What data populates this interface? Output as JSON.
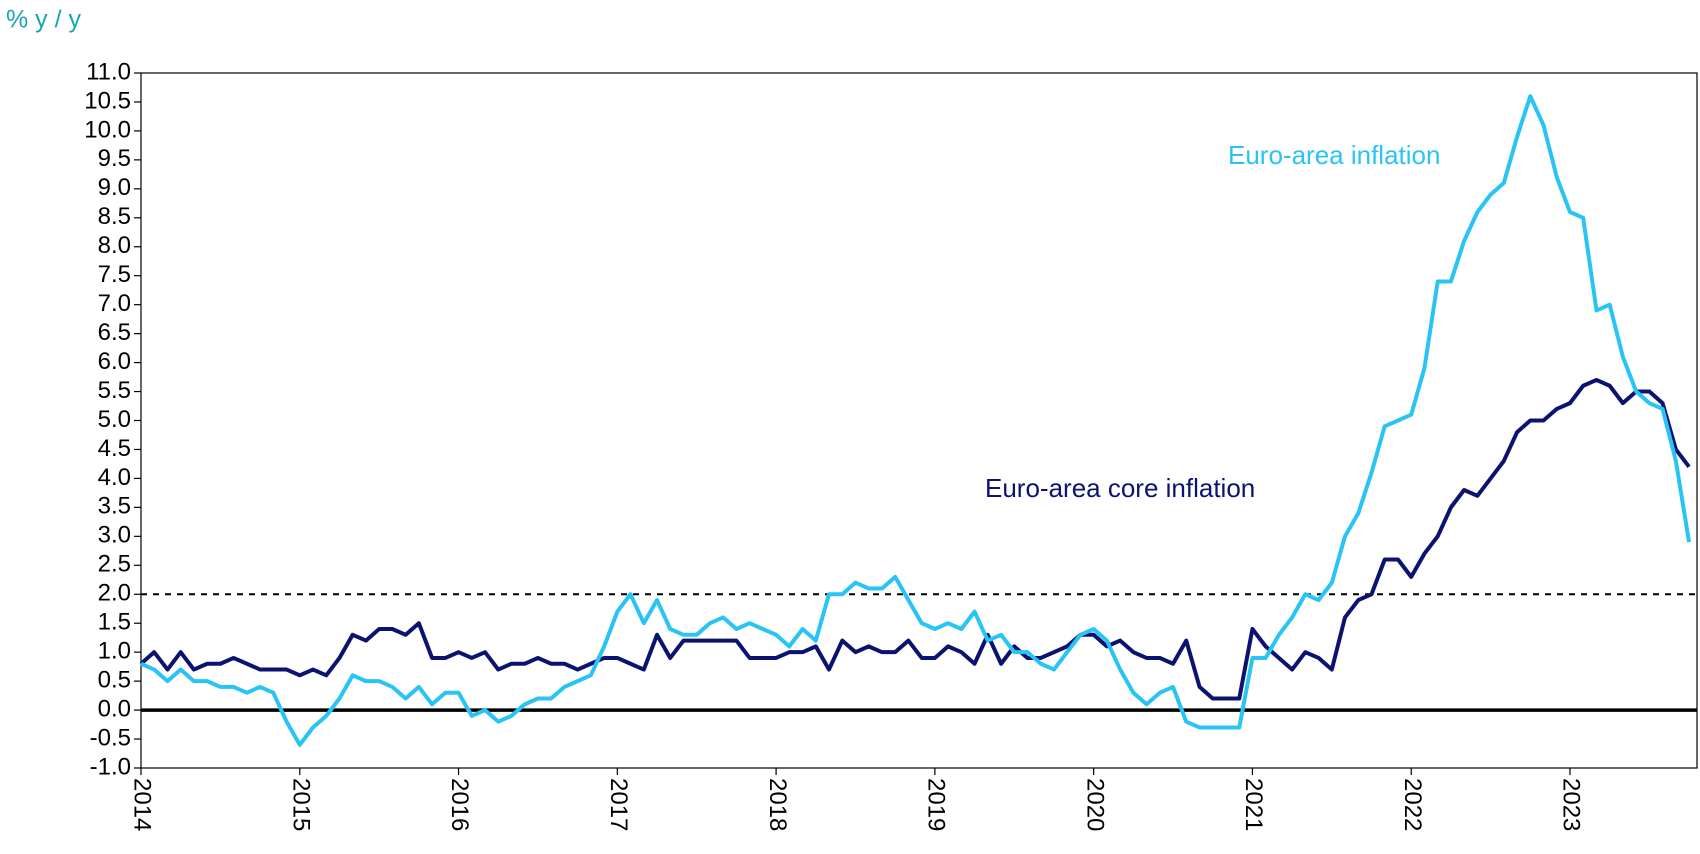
{
  "chart_data": {
    "type": "line",
    "y_label": "% y / y",
    "annotations": [
      "Euro-area inflation",
      "Euro-area core inflation"
    ],
    "x": [
      2014,
      2014.083,
      2014.167,
      2014.25,
      2014.333,
      2014.417,
      2014.5,
      2014.583,
      2014.667,
      2014.75,
      2014.833,
      2014.917,
      2015,
      2015.083,
      2015.167,
      2015.25,
      2015.333,
      2015.417,
      2015.5,
      2015.583,
      2015.667,
      2015.75,
      2015.833,
      2015.917,
      2016,
      2016.083,
      2016.167,
      2016.25,
      2016.333,
      2016.417,
      2016.5,
      2016.583,
      2016.667,
      2016.75,
      2016.833,
      2016.917,
      2017,
      2017.083,
      2017.167,
      2017.25,
      2017.333,
      2017.417,
      2017.5,
      2017.583,
      2017.667,
      2017.75,
      2017.833,
      2017.917,
      2018,
      2018.083,
      2018.167,
      2018.25,
      2018.333,
      2018.417,
      2018.5,
      2018.583,
      2018.667,
      2018.75,
      2018.833,
      2018.917,
      2019,
      2019.083,
      2019.167,
      2019.25,
      2019.333,
      2019.417,
      2019.5,
      2019.583,
      2019.667,
      2019.75,
      2019.833,
      2019.917,
      2020,
      2020.083,
      2020.167,
      2020.25,
      2020.333,
      2020.417,
      2020.5,
      2020.583,
      2020.667,
      2020.75,
      2020.833,
      2020.917,
      2021,
      2021.083,
      2021.167,
      2021.25,
      2021.333,
      2021.417,
      2021.5,
      2021.583,
      2021.667,
      2021.75,
      2021.833,
      2021.917,
      2022,
      2022.083,
      2022.167,
      2022.25,
      2022.333,
      2022.417,
      2022.5,
      2022.583,
      2022.667,
      2022.75,
      2022.833,
      2022.917,
      2023,
      2023.083,
      2023.167,
      2023.25,
      2023.333,
      2023.417,
      2023.5,
      2023.583,
      2023.667,
      2023.75
    ],
    "series": [
      {
        "name": "Euro-area inflation",
        "color": "#29c4f6",
        "values": [
          0.8,
          0.7,
          0.5,
          0.7,
          0.5,
          0.5,
          0.4,
          0.4,
          0.3,
          0.4,
          0.3,
          -0.2,
          -0.6,
          -0.3,
          -0.1,
          0.2,
          0.6,
          0.5,
          0.5,
          0.4,
          0.2,
          0.4,
          0.1,
          0.3,
          0.3,
          -0.1,
          0.0,
          -0.2,
          -0.1,
          0.1,
          0.2,
          0.2,
          0.4,
          0.5,
          0.6,
          1.1,
          1.7,
          2.0,
          1.5,
          1.9,
          1.4,
          1.3,
          1.3,
          1.5,
          1.6,
          1.4,
          1.5,
          1.4,
          1.3,
          1.1,
          1.4,
          1.2,
          2.0,
          2.0,
          2.2,
          2.1,
          2.1,
          2.3,
          1.9,
          1.5,
          1.4,
          1.5,
          1.4,
          1.7,
          1.2,
          1.3,
          1.0,
          1.0,
          0.8,
          0.7,
          1.0,
          1.3,
          1.4,
          1.2,
          0.7,
          0.3,
          0.1,
          0.3,
          0.4,
          -0.2,
          -0.3,
          -0.3,
          -0.3,
          -0.3,
          0.9,
          0.9,
          1.3,
          1.6,
          2.0,
          1.9,
          2.2,
          3.0,
          3.4,
          4.1,
          4.9,
          5.0,
          5.1,
          5.9,
          7.4,
          7.4,
          8.1,
          8.6,
          8.9,
          9.1,
          9.9,
          10.6,
          10.1,
          9.2,
          8.6,
          8.5,
          6.9,
          7.0,
          6.1,
          5.5,
          5.3,
          5.2,
          4.3,
          2.9
        ]
      },
      {
        "name": "Euro-area core inflation",
        "color": "#0c1270",
        "values": [
          0.8,
          1.0,
          0.7,
          1.0,
          0.7,
          0.8,
          0.8,
          0.9,
          0.8,
          0.7,
          0.7,
          0.7,
          0.6,
          0.7,
          0.6,
          0.9,
          1.3,
          1.2,
          1.4,
          1.4,
          1.3,
          1.5,
          0.9,
          0.9,
          1.0,
          0.9,
          1.0,
          0.7,
          0.8,
          0.8,
          0.9,
          0.8,
          0.8,
          0.7,
          0.8,
          0.9,
          0.9,
          0.8,
          0.7,
          1.3,
          0.9,
          1.2,
          1.2,
          1.2,
          1.2,
          1.2,
          0.9,
          0.9,
          0.9,
          1.0,
          1.0,
          1.1,
          0.7,
          1.2,
          1.0,
          1.1,
          1.0,
          1.0,
          1.2,
          0.9,
          0.9,
          1.1,
          1.0,
          0.8,
          1.3,
          0.8,
          1.1,
          0.9,
          0.9,
          1.0,
          1.1,
          1.3,
          1.3,
          1.1,
          1.2,
          1.0,
          0.9,
          0.9,
          0.8,
          1.2,
          0.4,
          0.2,
          0.2,
          0.2,
          1.4,
          1.1,
          0.9,
          0.7,
          1.0,
          0.9,
          0.7,
          1.6,
          1.9,
          2.0,
          2.6,
          2.6,
          2.3,
          2.7,
          3.0,
          3.5,
          3.8,
          3.7,
          4.0,
          4.3,
          4.8,
          5.0,
          5.0,
          5.2,
          5.3,
          5.6,
          5.7,
          5.6,
          5.3,
          5.5,
          5.5,
          5.3,
          4.5,
          4.2
        ]
      }
    ],
    "xlim": [
      2014,
      2023.8
    ],
    "xticks": [
      2014,
      2015,
      2016,
      2017,
      2018,
      2019,
      2020,
      2021,
      2022,
      2023
    ],
    "ylim": [
      -1,
      11
    ],
    "yticks": [
      {
        "value": -1,
        "label": "-1.0"
      },
      -0.5,
      {
        "value": 0,
        "label": "0.0"
      },
      0.5,
      {
        "value": 1,
        "label": "1.0"
      },
      1.5,
      {
        "value": 2,
        "label": "2.0"
      },
      2.5,
      {
        "value": 3,
        "label": "3.0"
      },
      3.5,
      {
        "value": 4,
        "label": "4.0"
      },
      4.5,
      {
        "value": 5,
        "label": "5.0"
      },
      5.5,
      {
        "value": 6,
        "label": "6.0"
      },
      6.5,
      {
        "value": 7,
        "label": "7.0"
      },
      7.5,
      {
        "value": 8,
        "label": "8.0"
      },
      8.5,
      {
        "value": 9,
        "label": "9.0"
      },
      9.5,
      {
        "value": 10,
        "label": "10.0"
      },
      10.5,
      {
        "value": 11,
        "label": "11.0"
      }
    ],
    "reference_lines": [
      {
        "y": 0,
        "style": "solid"
      },
      {
        "y": 2,
        "style": "dashed"
      }
    ],
    "grid": false
  }
}
